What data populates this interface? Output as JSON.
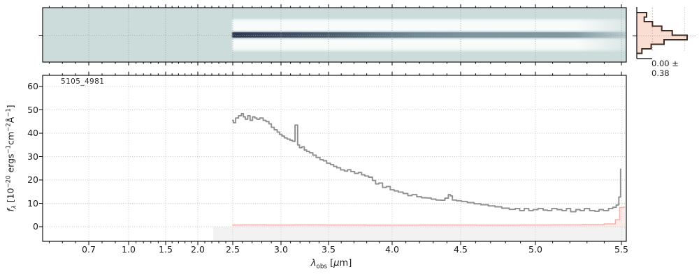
{
  "page": {
    "background": "#ffffff"
  },
  "colors": {
    "teal_background": "#ccdcdb",
    "trace_core": "#323b54",
    "flux_line": "#8f8f8f",
    "error_line": "#f5b2ab",
    "mask_fill": "#f2f2f2",
    "hist_outline": "#3d2a20",
    "hist_fill": "#f6c3ae",
    "hist_sigma_line": "#ef9f8d",
    "grid": "#c6c6c6"
  },
  "chart_data": [
    {
      "id": "spec2d",
      "type": "heatmap",
      "description": "2D spectrum strip, teal colormap; dark source trace along center row with white outlier bands above and below",
      "trace_start_um": 2.49,
      "trace_end_um": 5.53,
      "xtick_values": [
        0.7,
        1.0,
        1.5,
        2.0,
        2.5,
        3.0,
        3.5,
        4.0,
        4.5,
        5.0,
        5.5
      ],
      "grid": true
    },
    {
      "id": "spectrum1d",
      "type": "line",
      "title": "5105_4981",
      "xlabel": "λobs [μm]",
      "ylabel": "fλ [10−20 ergs−1cm−2Å−1]",
      "xlabel_rich": [
        [
          "λ",
          "i"
        ],
        [
          "obs",
          "sub"
        ],
        [
          " [",
          ""
        ],
        [
          "μ",
          "i"
        ],
        [
          "m",
          ""
        ],
        [
          "]",
          ""
        ]
      ],
      "ylabel_rich": [
        [
          "f",
          "i"
        ],
        [
          "λ",
          "isub"
        ],
        [
          " [10",
          ""
        ],
        [
          "−20",
          "sup"
        ],
        [
          " ergs",
          ""
        ],
        [
          "−1",
          "sup"
        ],
        [
          "cm",
          ""
        ],
        [
          "−2",
          "sup"
        ],
        [
          "Å",
          ""
        ],
        [
          "−1",
          "sup"
        ],
        [
          "]",
          ""
        ]
      ],
      "xtick_labels": [
        "0.7",
        "1.0",
        "1.5",
        "2.0",
        "2.5",
        "3.0",
        "3.5",
        "4.0",
        "4.5",
        "5.0",
        "5.5"
      ],
      "xtick_values": [
        0.7,
        1.0,
        1.5,
        2.0,
        2.5,
        3.0,
        3.5,
        4.0,
        4.5,
        5.0,
        5.5
      ],
      "ytick_labels": [
        "0",
        "10",
        "20",
        "30",
        "40",
        "50",
        "60"
      ],
      "ytick_values": [
        0,
        10,
        20,
        30,
        40,
        50,
        60
      ],
      "ylim": [
        -6.3,
        64.8
      ],
      "grid": true,
      "masked_region_um": [
        2.22,
        5.54
      ],
      "features": [
        {
          "type": "emission-line",
          "um": 3.16,
          "peak": 43.5
        },
        {
          "type": "emission-line",
          "um": 4.42,
          "peak": 13.7
        },
        {
          "type": "edge-spike",
          "um": 5.5,
          "peak": 24.6
        }
      ],
      "series": [
        {
          "name": "flux",
          "points": [
            [
              2.49,
              45.5
            ],
            [
              2.52,
              44.5
            ],
            [
              2.54,
              46.5
            ],
            [
              2.58,
              47.5
            ],
            [
              2.6,
              48.4
            ],
            [
              2.62,
              47.0
            ],
            [
              2.64,
              46.0
            ],
            [
              2.67,
              47.5
            ],
            [
              2.69,
              45.5
            ],
            [
              2.72,
              47.0
            ],
            [
              2.74,
              46.5
            ],
            [
              2.76,
              46.0
            ],
            [
              2.8,
              46.5
            ],
            [
              2.83,
              45.5
            ],
            [
              2.86,
              45.0
            ],
            [
              2.89,
              44.0
            ],
            [
              2.91,
              42.5
            ],
            [
              2.95,
              41.5
            ],
            [
              2.97,
              40.5
            ],
            [
              3.0,
              39.5
            ],
            [
              3.02,
              38.8
            ],
            [
              3.05,
              38.0
            ],
            [
              3.08,
              37.5
            ],
            [
              3.11,
              37.0
            ],
            [
              3.13,
              36.6
            ],
            [
              3.145,
              36.5
            ],
            [
              3.15,
              43.5
            ],
            [
              3.17,
              43.5
            ],
            [
              3.18,
              35.0
            ],
            [
              3.21,
              33.8
            ],
            [
              3.23,
              34.2
            ],
            [
              3.26,
              32.8
            ],
            [
              3.28,
              32.2
            ],
            [
              3.32,
              31.6
            ],
            [
              3.35,
              30.6
            ],
            [
              3.39,
              29.6
            ],
            [
              3.43,
              28.7
            ],
            [
              3.46,
              28.2
            ],
            [
              3.5,
              27.2
            ],
            [
              3.53,
              26.6
            ],
            [
              3.55,
              25.8
            ],
            [
              3.58,
              25.2
            ],
            [
              3.61,
              24.3
            ],
            [
              3.64,
              23.8
            ],
            [
              3.66,
              24.4
            ],
            [
              3.69,
              23.6
            ],
            [
              3.72,
              22.8
            ],
            [
              3.75,
              23.2
            ],
            [
              3.77,
              22.2
            ],
            [
              3.8,
              21.7
            ],
            [
              3.83,
              21.2
            ],
            [
              3.86,
              19.8
            ],
            [
              3.88,
              18.3
            ],
            [
              3.91,
              18.7
            ],
            [
              3.94,
              16.8
            ],
            [
              3.97,
              17.2
            ],
            [
              4.0,
              15.8
            ],
            [
              4.03,
              15.3
            ],
            [
              4.06,
              14.8
            ],
            [
              4.1,
              14.2
            ],
            [
              4.13,
              13.3
            ],
            [
              4.16,
              13.7
            ],
            [
              4.2,
              12.8
            ],
            [
              4.23,
              12.4
            ],
            [
              4.27,
              12.3
            ],
            [
              4.3,
              11.8
            ],
            [
              4.34,
              11.4
            ],
            [
              4.37,
              11.3
            ],
            [
              4.4,
              12.2
            ],
            [
              4.42,
              13.7
            ],
            [
              4.43,
              13.2
            ],
            [
              4.45,
              11.4
            ],
            [
              4.49,
              11.1
            ],
            [
              4.52,
              10.8
            ],
            [
              4.57,
              10.3
            ],
            [
              4.61,
              9.8
            ],
            [
              4.66,
              9.4
            ],
            [
              4.71,
              8.9
            ],
            [
              4.75,
              8.5
            ],
            [
              4.8,
              7.9
            ],
            [
              4.85,
              7.4
            ],
            [
              4.88,
              7.8
            ],
            [
              4.91,
              6.9
            ],
            [
              4.94,
              7.8
            ],
            [
              4.97,
              6.9
            ],
            [
              5.0,
              7.3
            ],
            [
              5.03,
              7.8
            ],
            [
              5.06,
              7.1
            ],
            [
              5.08,
              6.9
            ],
            [
              5.11,
              7.8
            ],
            [
              5.14,
              7.3
            ],
            [
              5.17,
              6.9
            ],
            [
              5.19,
              7.8
            ],
            [
              5.22,
              6.4
            ],
            [
              5.25,
              7.3
            ],
            [
              5.27,
              6.9
            ],
            [
              5.3,
              7.8
            ],
            [
              5.33,
              6.9
            ],
            [
              5.36,
              6.6
            ],
            [
              5.38,
              7.3
            ],
            [
              5.41,
              6.9
            ],
            [
              5.44,
              7.8
            ],
            [
              5.46,
              8.3
            ],
            [
              5.48,
              9.3
            ],
            [
              5.49,
              12.7
            ],
            [
              5.5,
              24.6
            ]
          ]
        },
        {
          "name": "uncertainty",
          "points": [
            [
              2.49,
              0.75
            ],
            [
              2.7,
              0.8
            ],
            [
              3.0,
              0.75
            ],
            [
              3.3,
              0.8
            ],
            [
              3.6,
              0.75
            ],
            [
              4.0,
              0.7
            ],
            [
              4.4,
              0.75
            ],
            [
              4.8,
              0.7
            ],
            [
              5.0,
              0.75
            ],
            [
              5.2,
              0.8
            ],
            [
              5.35,
              0.9
            ],
            [
              5.45,
              1.2
            ],
            [
              5.48,
              3.0
            ],
            [
              5.5,
              8.2
            ],
            [
              5.53,
              8.4
            ]
          ]
        }
      ]
    },
    {
      "id": "residual-hist",
      "type": "bar",
      "orientation": "horizontal",
      "annotation": "0.00 ± 0.38",
      "mean": 0.0,
      "sigma": 0.38,
      "counts": [
        0.163,
        0.124,
        0.26,
        0.415,
        0.59,
        0.837,
        0.453,
        0.24,
        0.085
      ]
    }
  ]
}
